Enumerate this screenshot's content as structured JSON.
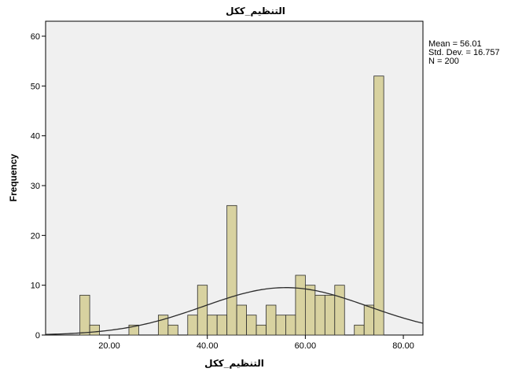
{
  "chart_data": {
    "type": "bar",
    "title": "التنظيم_ككل",
    "xlabel": "التنظيم_ككل",
    "ylabel": "Frequency",
    "xlim": [
      7.0,
      84.0
    ],
    "ylim": [
      0,
      63
    ],
    "x_ticks": [
      20,
      40,
      60,
      80
    ],
    "x_tick_labels": [
      "20.00",
      "40.00",
      "60.00",
      "80.00"
    ],
    "y_ticks": [
      0,
      10,
      20,
      30,
      40,
      50,
      60
    ],
    "y_tick_labels": [
      "0",
      "10",
      "20",
      "30",
      "40",
      "50",
      "60"
    ],
    "bin_width": 2,
    "bars": [
      {
        "x": 14,
        "value": 8
      },
      {
        "x": 16,
        "value": 2
      },
      {
        "x": 24,
        "value": 2
      },
      {
        "x": 30,
        "value": 4
      },
      {
        "x": 32,
        "value": 2
      },
      {
        "x": 36,
        "value": 4
      },
      {
        "x": 38,
        "value": 10
      },
      {
        "x": 40,
        "value": 4
      },
      {
        "x": 42,
        "value": 4
      },
      {
        "x": 44,
        "value": 26
      },
      {
        "x": 46,
        "value": 6
      },
      {
        "x": 48,
        "value": 4
      },
      {
        "x": 50,
        "value": 2
      },
      {
        "x": 52,
        "value": 6
      },
      {
        "x": 54,
        "value": 4
      },
      {
        "x": 56,
        "value": 4
      },
      {
        "x": 58,
        "value": 12
      },
      {
        "x": 60,
        "value": 10
      },
      {
        "x": 62,
        "value": 8
      },
      {
        "x": 64,
        "value": 8
      },
      {
        "x": 66,
        "value": 10
      },
      {
        "x": 70,
        "value": 2
      },
      {
        "x": 72,
        "value": 6
      },
      {
        "x": 74,
        "value": 52
      }
    ],
    "normal_curve": {
      "mean": 56.01,
      "std": 16.757,
      "n": 200
    },
    "stats": [
      "Mean = 56.01",
      "Std. Dev. = 16.757",
      "N = 200"
    ],
    "grid": false,
    "legend_placement": "top-right",
    "colors": {
      "bar_fill": "#d8d2a0",
      "bar_stroke": "#2b2b2b",
      "plot_background": "#f0f0f0",
      "curve": "#2b2b2b"
    }
  }
}
